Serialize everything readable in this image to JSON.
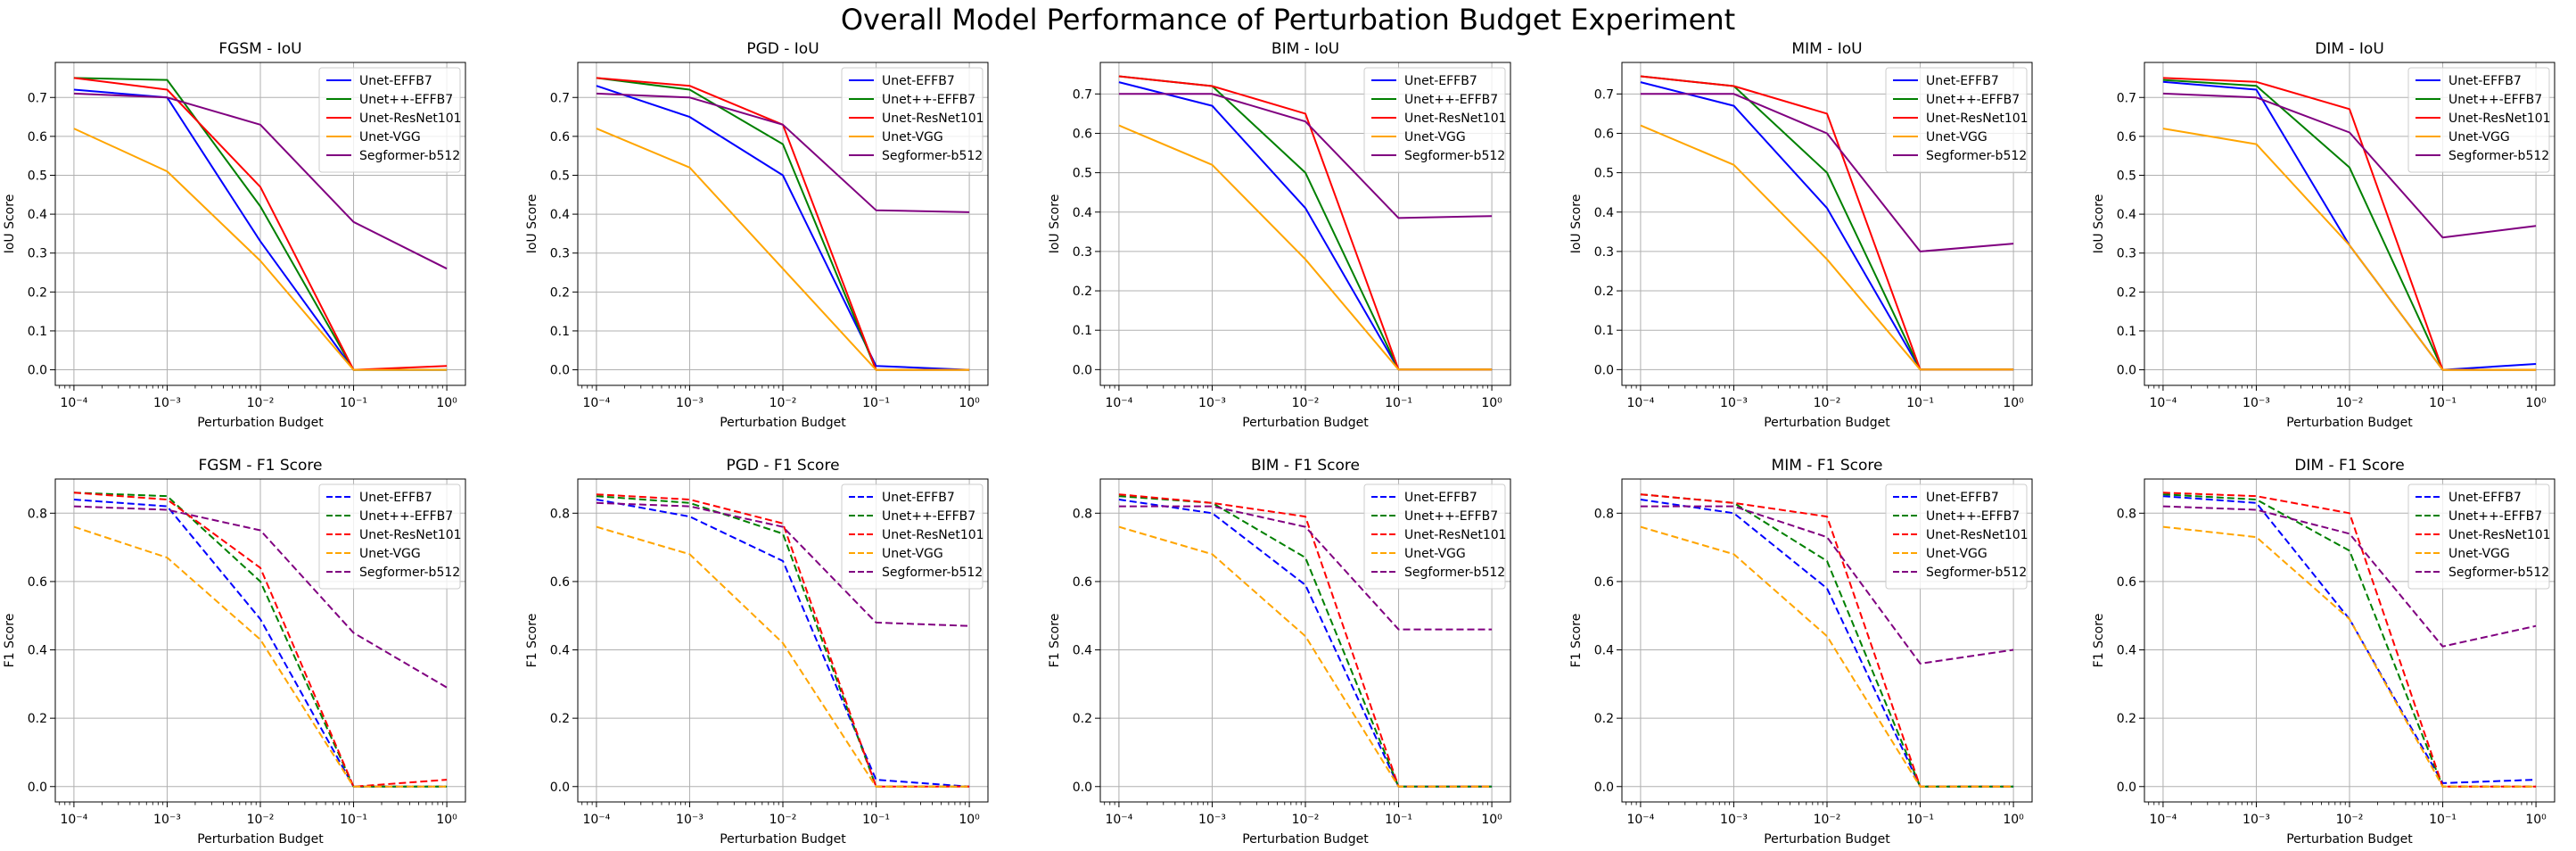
{
  "figure": {
    "title": "Overall Model Performance of Perturbation Budget Experiment"
  },
  "colors": {
    "Unet-EFFB7": "#0000ff",
    "Unet++-EFFB7": "#008000",
    "Unet-ResNet101": "#ff0000",
    "Unet-VGG": "#ffa500",
    "Segformer-b512": "#800080"
  },
  "chart_data": [
    {
      "type": "line",
      "title": "FGSM - IoU",
      "xlabel": "Perturbation Budget",
      "ylabel": "IoU Score",
      "xscale": "log",
      "x": [
        0.0001,
        0.001,
        0.01,
        0.1,
        1
      ],
      "xticks": [
        "10⁻⁴",
        "10⁻³",
        "10⁻²",
        "10⁻¹",
        "10⁰"
      ],
      "ylim": [
        -0.04,
        0.79
      ],
      "yticks": [
        "0.0",
        "0.1",
        "0.2",
        "0.3",
        "0.4",
        "0.5",
        "0.6",
        "0.7"
      ],
      "grid": true,
      "legend_position": "upper right",
      "line_style": "solid",
      "series": [
        {
          "name": "Unet-EFFB7",
          "values": [
            0.72,
            0.7,
            0.33,
            0.0,
            0.0
          ]
        },
        {
          "name": "Unet++-EFFB7",
          "values": [
            0.75,
            0.745,
            0.42,
            0.0,
            0.0
          ]
        },
        {
          "name": "Unet-ResNet101",
          "values": [
            0.75,
            0.72,
            0.47,
            0.0,
            0.01
          ]
        },
        {
          "name": "Unet-VGG",
          "values": [
            0.62,
            0.51,
            0.28,
            0.0,
            0.0
          ]
        },
        {
          "name": "Segformer-b512",
          "values": [
            0.71,
            0.7,
            0.63,
            0.38,
            0.26
          ]
        }
      ]
    },
    {
      "type": "line",
      "title": "PGD - IoU",
      "xlabel": "Perturbation Budget",
      "ylabel": "IoU Score",
      "xscale": "log",
      "x": [
        0.0001,
        0.001,
        0.01,
        0.1,
        1
      ],
      "xticks": [
        "10⁻⁴",
        "10⁻³",
        "10⁻²",
        "10⁻¹",
        "10⁰"
      ],
      "ylim": [
        -0.04,
        0.79
      ],
      "yticks": [
        "0.0",
        "0.1",
        "0.2",
        "0.3",
        "0.4",
        "0.5",
        "0.6",
        "0.7"
      ],
      "grid": true,
      "legend_position": "upper right",
      "line_style": "solid",
      "series": [
        {
          "name": "Unet-EFFB7",
          "values": [
            0.73,
            0.65,
            0.5,
            0.01,
            0.0
          ]
        },
        {
          "name": "Unet++-EFFB7",
          "values": [
            0.75,
            0.72,
            0.58,
            0.0,
            0.0
          ]
        },
        {
          "name": "Unet-ResNet101",
          "values": [
            0.75,
            0.73,
            0.63,
            0.0,
            0.0
          ]
        },
        {
          "name": "Unet-VGG",
          "values": [
            0.62,
            0.52,
            0.26,
            0.0,
            0.0
          ]
        },
        {
          "name": "Segformer-b512",
          "values": [
            0.71,
            0.7,
            0.63,
            0.41,
            0.405
          ]
        }
      ]
    },
    {
      "type": "line",
      "title": "BIM - IoU",
      "xlabel": "Perturbation Budget",
      "ylabel": "IoU Score",
      "xscale": "log",
      "x": [
        0.0001,
        0.001,
        0.01,
        0.1,
        1
      ],
      "xticks": [
        "10⁻⁴",
        "10⁻³",
        "10⁻²",
        "10⁻¹",
        "10⁰"
      ],
      "ylim": [
        -0.04,
        0.78
      ],
      "yticks": [
        "0.0",
        "0.1",
        "0.2",
        "0.3",
        "0.4",
        "0.5",
        "0.6",
        "0.7"
      ],
      "grid": true,
      "legend_position": "upper right",
      "line_style": "solid",
      "series": [
        {
          "name": "Unet-EFFB7",
          "values": [
            0.73,
            0.67,
            0.41,
            0.0,
            0.0
          ]
        },
        {
          "name": "Unet++-EFFB7",
          "values": [
            0.745,
            0.72,
            0.5,
            0.0,
            0.0
          ]
        },
        {
          "name": "Unet-ResNet101",
          "values": [
            0.745,
            0.72,
            0.65,
            0.0,
            0.0
          ]
        },
        {
          "name": "Unet-VGG",
          "values": [
            0.62,
            0.52,
            0.28,
            0.0,
            0.0
          ]
        },
        {
          "name": "Segformer-b512",
          "values": [
            0.7,
            0.7,
            0.63,
            0.385,
            0.39
          ]
        }
      ]
    },
    {
      "type": "line",
      "title": "MIM - IoU",
      "xlabel": "Perturbation Budget",
      "ylabel": "IoU Score",
      "xscale": "log",
      "x": [
        0.0001,
        0.001,
        0.01,
        0.1,
        1
      ],
      "xticks": [
        "10⁻⁴",
        "10⁻³",
        "10⁻²",
        "10⁻¹",
        "10⁰"
      ],
      "ylim": [
        -0.04,
        0.78
      ],
      "yticks": [
        "0.0",
        "0.1",
        "0.2",
        "0.3",
        "0.4",
        "0.5",
        "0.6",
        "0.7"
      ],
      "grid": true,
      "legend_position": "upper right",
      "line_style": "solid",
      "series": [
        {
          "name": "Unet-EFFB7",
          "values": [
            0.73,
            0.67,
            0.41,
            0.0,
            0.0
          ]
        },
        {
          "name": "Unet++-EFFB7",
          "values": [
            0.745,
            0.72,
            0.5,
            0.0,
            0.0
          ]
        },
        {
          "name": "Unet-ResNet101",
          "values": [
            0.745,
            0.72,
            0.65,
            0.0,
            0.0
          ]
        },
        {
          "name": "Unet-VGG",
          "values": [
            0.62,
            0.52,
            0.28,
            0.0,
            0.0
          ]
        },
        {
          "name": "Segformer-b512",
          "values": [
            0.7,
            0.7,
            0.6,
            0.3,
            0.32
          ]
        }
      ]
    },
    {
      "type": "line",
      "title": "DIM - IoU",
      "xlabel": "Perturbation Budget",
      "ylabel": "IoU Score",
      "xscale": "log",
      "x": [
        0.0001,
        0.001,
        0.01,
        0.1,
        1
      ],
      "xticks": [
        "10⁻⁴",
        "10⁻³",
        "10⁻²",
        "10⁻¹",
        "10⁰"
      ],
      "ylim": [
        -0.04,
        0.79
      ],
      "yticks": [
        "0.0",
        "0.1",
        "0.2",
        "0.3",
        "0.4",
        "0.5",
        "0.6",
        "0.7"
      ],
      "grid": true,
      "legend_position": "upper right",
      "line_style": "solid",
      "series": [
        {
          "name": "Unet-EFFB7",
          "values": [
            0.74,
            0.72,
            0.32,
            0.0,
            0.015
          ]
        },
        {
          "name": "Unet++-EFFB7",
          "values": [
            0.745,
            0.73,
            0.52,
            0.0,
            0.0
          ]
        },
        {
          "name": "Unet-ResNet101",
          "values": [
            0.75,
            0.74,
            0.67,
            0.0,
            0.0
          ]
        },
        {
          "name": "Unet-VGG",
          "values": [
            0.62,
            0.58,
            0.32,
            0.0,
            0.0
          ]
        },
        {
          "name": "Segformer-b512",
          "values": [
            0.71,
            0.7,
            0.61,
            0.34,
            0.37
          ]
        }
      ]
    },
    {
      "type": "line",
      "title": "FGSM - F1 Score",
      "xlabel": "Perturbation Budget",
      "ylabel": "F1 Score",
      "xscale": "log",
      "x": [
        0.0001,
        0.001,
        0.01,
        0.1,
        1
      ],
      "xticks": [
        "10⁻⁴",
        "10⁻³",
        "10⁻²",
        "10⁻¹",
        "10⁰"
      ],
      "ylim": [
        -0.045,
        0.9
      ],
      "yticks": [
        "0.0",
        "0.2",
        "0.4",
        "0.6",
        "0.8"
      ],
      "grid": true,
      "legend_position": "upper right",
      "line_style": "dashed",
      "series": [
        {
          "name": "Unet-EFFB7",
          "values": [
            0.84,
            0.82,
            0.49,
            0.0,
            0.0
          ]
        },
        {
          "name": "Unet++-EFFB7",
          "values": [
            0.86,
            0.85,
            0.6,
            0.0,
            0.0
          ]
        },
        {
          "name": "Unet-ResNet101",
          "values": [
            0.86,
            0.84,
            0.64,
            0.0,
            0.02
          ]
        },
        {
          "name": "Unet-VGG",
          "values": [
            0.76,
            0.67,
            0.43,
            0.0,
            0.0
          ]
        },
        {
          "name": "Segformer-b512",
          "values": [
            0.82,
            0.81,
            0.75,
            0.45,
            0.29
          ]
        }
      ]
    },
    {
      "type": "line",
      "title": "PGD - F1 Score",
      "xlabel": "Perturbation Budget",
      "ylabel": "F1 Score",
      "xscale": "log",
      "x": [
        0.0001,
        0.001,
        0.01,
        0.1,
        1
      ],
      "xticks": [
        "10⁻⁴",
        "10⁻³",
        "10⁻²",
        "10⁻¹",
        "10⁰"
      ],
      "ylim": [
        -0.045,
        0.9
      ],
      "yticks": [
        "0.0",
        "0.2",
        "0.4",
        "0.6",
        "0.8"
      ],
      "grid": true,
      "legend_position": "upper right",
      "line_style": "dashed",
      "series": [
        {
          "name": "Unet-EFFB7",
          "values": [
            0.84,
            0.79,
            0.66,
            0.02,
            0.0
          ]
        },
        {
          "name": "Unet++-EFFB7",
          "values": [
            0.85,
            0.83,
            0.74,
            0.0,
            0.0
          ]
        },
        {
          "name": "Unet-ResNet101",
          "values": [
            0.855,
            0.84,
            0.77,
            0.0,
            0.0
          ]
        },
        {
          "name": "Unet-VGG",
          "values": [
            0.76,
            0.68,
            0.42,
            0.0,
            0.0
          ]
        },
        {
          "name": "Segformer-b512",
          "values": [
            0.83,
            0.82,
            0.76,
            0.48,
            0.47
          ]
        }
      ]
    },
    {
      "type": "line",
      "title": "BIM - F1 Score",
      "xlabel": "Perturbation Budget",
      "ylabel": "F1 Score",
      "xscale": "log",
      "x": [
        0.0001,
        0.001,
        0.01,
        0.1,
        1
      ],
      "xticks": [
        "10⁻⁴",
        "10⁻³",
        "10⁻²",
        "10⁻¹",
        "10⁰"
      ],
      "ylim": [
        -0.045,
        0.9
      ],
      "yticks": [
        "0.0",
        "0.2",
        "0.4",
        "0.6",
        "0.8"
      ],
      "grid": true,
      "legend_position": "upper right",
      "line_style": "dashed",
      "series": [
        {
          "name": "Unet-EFFB7",
          "values": [
            0.84,
            0.8,
            0.59,
            0.0,
            0.0
          ]
        },
        {
          "name": "Unet++-EFFB7",
          "values": [
            0.85,
            0.83,
            0.67,
            0.0,
            0.0
          ]
        },
        {
          "name": "Unet-ResNet101",
          "values": [
            0.855,
            0.83,
            0.79,
            0.0,
            0.0
          ]
        },
        {
          "name": "Unet-VGG",
          "values": [
            0.76,
            0.68,
            0.44,
            0.0,
            0.0
          ]
        },
        {
          "name": "Segformer-b512",
          "values": [
            0.82,
            0.82,
            0.76,
            0.46,
            0.46
          ]
        }
      ]
    },
    {
      "type": "line",
      "title": "MIM - F1 Score",
      "xlabel": "Perturbation Budget",
      "ylabel": "F1 Score",
      "xscale": "log",
      "x": [
        0.0001,
        0.001,
        0.01,
        0.1,
        1
      ],
      "xticks": [
        "10⁻⁴",
        "10⁻³",
        "10⁻²",
        "10⁻¹",
        "10⁰"
      ],
      "ylim": [
        -0.045,
        0.9
      ],
      "yticks": [
        "0.0",
        "0.2",
        "0.4",
        "0.6",
        "0.8"
      ],
      "grid": true,
      "legend_position": "upper right",
      "line_style": "dashed",
      "series": [
        {
          "name": "Unet-EFFB7",
          "values": [
            0.84,
            0.8,
            0.58,
            0.0,
            0.0
          ]
        },
        {
          "name": "Unet++-EFFB7",
          "values": [
            0.855,
            0.83,
            0.66,
            0.0,
            0.0
          ]
        },
        {
          "name": "Unet-ResNet101",
          "values": [
            0.855,
            0.83,
            0.79,
            0.0,
            0.0
          ]
        },
        {
          "name": "Unet-VGG",
          "values": [
            0.76,
            0.68,
            0.44,
            0.0,
            0.0
          ]
        },
        {
          "name": "Segformer-b512",
          "values": [
            0.82,
            0.82,
            0.73,
            0.36,
            0.4
          ]
        }
      ]
    },
    {
      "type": "line",
      "title": "DIM - F1 Score",
      "xlabel": "Perturbation Budget",
      "ylabel": "F1 Score",
      "xscale": "log",
      "x": [
        0.0001,
        0.001,
        0.01,
        0.1,
        1
      ],
      "xticks": [
        "10⁻⁴",
        "10⁻³",
        "10⁻²",
        "10⁻¹",
        "10⁰"
      ],
      "ylim": [
        -0.045,
        0.9
      ],
      "yticks": [
        "0.0",
        "0.2",
        "0.4",
        "0.6",
        "0.8"
      ],
      "grid": true,
      "legend_position": "upper right",
      "line_style": "dashed",
      "series": [
        {
          "name": "Unet-EFFB7",
          "values": [
            0.85,
            0.83,
            0.49,
            0.01,
            0.02
          ]
        },
        {
          "name": "Unet++-EFFB7",
          "values": [
            0.855,
            0.84,
            0.69,
            0.0,
            0.0
          ]
        },
        {
          "name": "Unet-ResNet101",
          "values": [
            0.86,
            0.85,
            0.8,
            0.0,
            0.0
          ]
        },
        {
          "name": "Unet-VGG",
          "values": [
            0.76,
            0.73,
            0.49,
            0.0,
            0.0
          ]
        },
        {
          "name": "Segformer-b512",
          "values": [
            0.82,
            0.81,
            0.74,
            0.41,
            0.47
          ]
        }
      ]
    }
  ]
}
